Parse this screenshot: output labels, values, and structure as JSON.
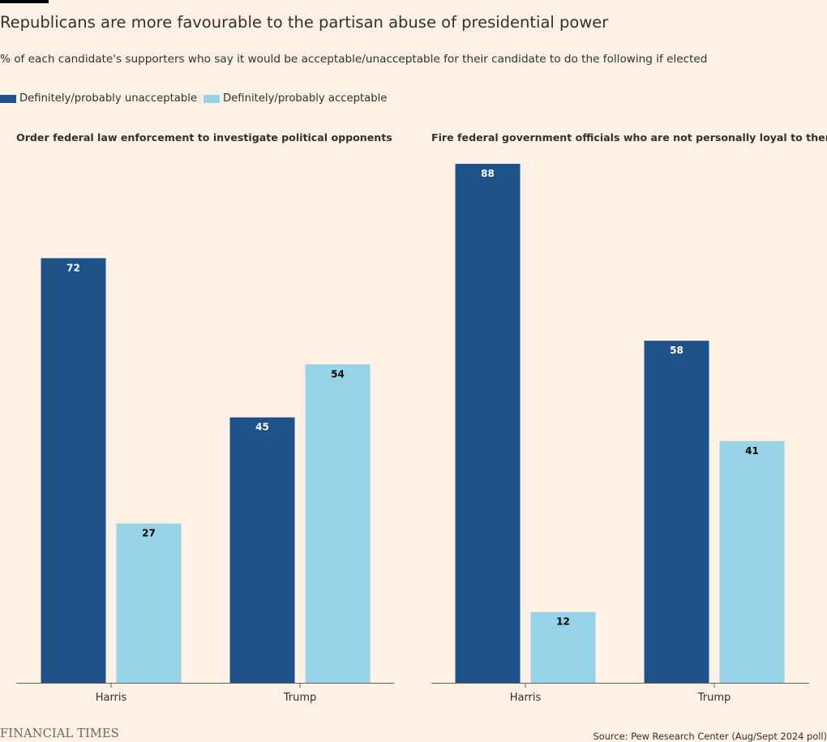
{
  "title": "Republicans are more favourable to the partisan abuse of presidential power",
  "subtitle": "% of each candidate's supporters who say it would be acceptable/unacceptable for their candidate to do the following if elected",
  "legend": {
    "unacceptable": "Definitely/probably unacceptable",
    "acceptable": "Definitely/probably acceptable"
  },
  "colors": {
    "unacceptable": "#1f5289",
    "acceptable": "#96d3e6",
    "background": "#fff1e5",
    "axis": "#66605c"
  },
  "chart_data": [
    {
      "type": "bar",
      "title": "Order federal law enforcement to investigate political opponents",
      "categories": [
        "Harris",
        "Trump"
      ],
      "series": [
        {
          "name": "Definitely/probably unacceptable",
          "values": [
            72,
            45
          ]
        },
        {
          "name": "Definitely/probably acceptable",
          "values": [
            27,
            54
          ]
        }
      ],
      "ylim": [
        0,
        90
      ]
    },
    {
      "type": "bar",
      "title": "Fire federal government officials who are not personally loyal to them",
      "categories": [
        "Harris",
        "Trump"
      ],
      "series": [
        {
          "name": "Definitely/probably unacceptable",
          "values": [
            88,
            58
          ]
        },
        {
          "name": "Definitely/probably acceptable",
          "values": [
            12,
            41
          ]
        }
      ],
      "ylim": [
        0,
        90
      ]
    }
  ],
  "footer": {
    "brand": "FINANCIAL TIMES",
    "source": "Source: Pew Research Center (Aug/Sept 2024 poll)"
  }
}
